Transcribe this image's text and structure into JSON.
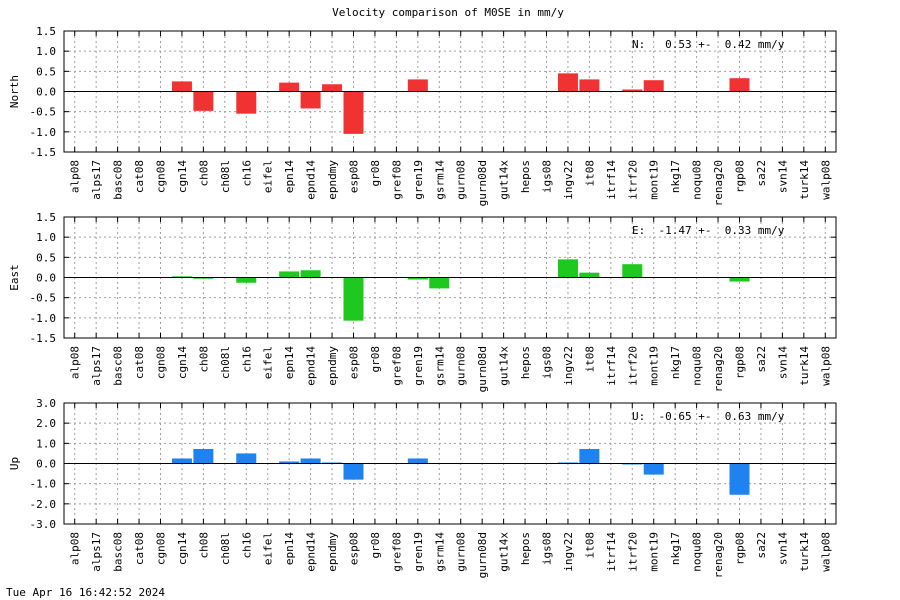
{
  "title": "Velocity comparison of M0SE in mm/y",
  "footer": "Tue Apr 16 16:42:52 2024",
  "colors": {
    "north": "#f03232",
    "east": "#1ec81e",
    "up": "#1e82f0",
    "grid": "#a0a0a0",
    "axis": "#000000"
  },
  "chart_data": [
    {
      "type": "bar",
      "ylabel": "North",
      "ylim": [
        -1.5,
        1.5
      ],
      "yticks": [
        "1.5",
        "1.0",
        "0.5",
        "0.0",
        "-0.5",
        "-1.0",
        "-1.5"
      ],
      "grid": true,
      "annotation": "N:   0.53 +-  0.42 mm/y",
      "categories": [
        "alp08",
        "alps17",
        "basc08",
        "cat08",
        "cgn08",
        "cgn14",
        "ch08",
        "ch08l",
        "ch16",
        "eifel",
        "epn14",
        "epnd14",
        "epndmy",
        "esp08",
        "gr08",
        "gref08",
        "gren19",
        "gsrm14",
        "gurn08",
        "gurn08d",
        "gut14x",
        "hepos",
        "igs08",
        "ingv22",
        "it08",
        "itrf14",
        "itrf20",
        "mont19",
        "nkg17",
        "noqu08",
        "renag20",
        "rgp08",
        "sa22",
        "svn14",
        "turk14",
        "walp08"
      ],
      "values": [
        0,
        0,
        0,
        0,
        0,
        0.25,
        -0.48,
        0,
        -0.55,
        0,
        0.22,
        -0.42,
        0.18,
        -1.05,
        0,
        0,
        0.3,
        0,
        0,
        0,
        0,
        0,
        0,
        0.45,
        0.3,
        0,
        0.05,
        0.28,
        0,
        0,
        0,
        0.33,
        0,
        0,
        0,
        0
      ]
    },
    {
      "type": "bar",
      "ylabel": "East",
      "ylim": [
        -1.5,
        1.5
      ],
      "yticks": [
        "1.5",
        "1.0",
        "0.5",
        "0.0",
        "-0.5",
        "-1.0",
        "-1.5"
      ],
      "grid": true,
      "annotation": "E:  -1.47 +-  0.33 mm/y",
      "categories": [
        "alp08",
        "alps17",
        "basc08",
        "cat08",
        "cgn08",
        "cgn14",
        "ch08",
        "ch08l",
        "ch16",
        "eifel",
        "epn14",
        "epnd14",
        "epndmy",
        "esp08",
        "gr08",
        "gref08",
        "gren19",
        "gsrm14",
        "gurn08",
        "gurn08d",
        "gut14x",
        "hepos",
        "igs08",
        "ingv22",
        "it08",
        "itrf14",
        "itrf20",
        "mont19",
        "nkg17",
        "noqu08",
        "renag20",
        "rgp08",
        "sa22",
        "svn14",
        "turk14",
        "walp08"
      ],
      "values": [
        0,
        0,
        0,
        0,
        0,
        0.03,
        -0.03,
        0,
        -0.13,
        0,
        0.15,
        0.18,
        0,
        -1.07,
        0,
        0,
        -0.05,
        -0.27,
        0,
        0,
        0,
        0,
        0,
        0.45,
        0.12,
        0,
        0.33,
        0,
        0,
        0,
        0,
        -0.1,
        0,
        0,
        0,
        0
      ]
    },
    {
      "type": "bar",
      "ylabel": "Up",
      "ylim": [
        -3.0,
        3.0
      ],
      "yticks": [
        "3.0",
        "2.0",
        "1.0",
        "0.0",
        "-1.0",
        "-2.0",
        "-3.0"
      ],
      "grid": true,
      "annotation": "U:  -0.65 +-  0.63 mm/y",
      "categories": [
        "alp08",
        "alps17",
        "basc08",
        "cat08",
        "cgn08",
        "cgn14",
        "ch08",
        "ch08l",
        "ch16",
        "eifel",
        "epn14",
        "epnd14",
        "epndmy",
        "esp08",
        "gr08",
        "gref08",
        "gren19",
        "gsrm14",
        "gurn08",
        "gurn08d",
        "gut14x",
        "hepos",
        "igs08",
        "ingv22",
        "it08",
        "itrf14",
        "itrf20",
        "mont19",
        "nkg17",
        "noqu08",
        "renag20",
        "rgp08",
        "sa22",
        "svn14",
        "turk14",
        "walp08"
      ],
      "values": [
        0,
        0,
        0,
        0,
        0,
        0.25,
        0.72,
        0,
        0.5,
        0,
        0.1,
        0.25,
        0.05,
        -0.8,
        0,
        0,
        0.25,
        0,
        0,
        0,
        0,
        0,
        0,
        0.05,
        0.72,
        0,
        -0.05,
        -0.55,
        0,
        0,
        0,
        -1.55,
        0,
        0,
        0,
        0
      ]
    }
  ]
}
